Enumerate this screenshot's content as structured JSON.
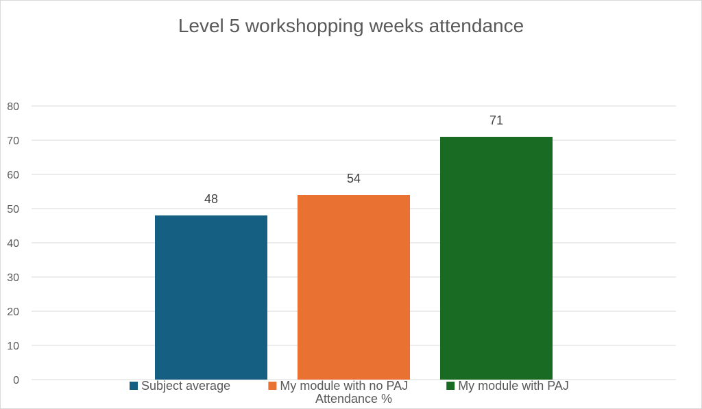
{
  "chart_data": {
    "type": "bar",
    "title": "Level 5 workshopping weeks attendance",
    "xlabel": "Attendance %",
    "ylabel": "",
    "ylim": [
      0,
      80
    ],
    "yticks": [
      0,
      10,
      20,
      30,
      40,
      50,
      60,
      70,
      80
    ],
    "grid": true,
    "legend_position": "bottom",
    "categories": [
      "Subject average",
      "My module with no PAJ",
      "My module with PAJ"
    ],
    "values": [
      48,
      54,
      71
    ],
    "colors": [
      "#156082",
      "#e97132",
      "#196b24"
    ],
    "data_labels": [
      "48",
      "54",
      "71"
    ]
  }
}
